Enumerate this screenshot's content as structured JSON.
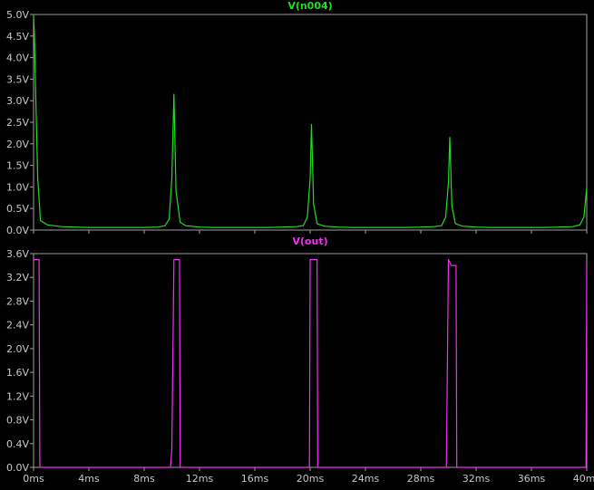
{
  "colors": {
    "background": "#000000",
    "frame": "#a0a0a0",
    "tick_text": "#c8c8c8"
  },
  "chart_data": [
    {
      "type": "line",
      "title": "V(n004)",
      "color": "#22dd22",
      "xlim": [
        0,
        40
      ],
      "ylim": [
        0,
        5.0
      ],
      "y_ticks": [
        "0.0V",
        "0.5V",
        "1.0V",
        "1.5V",
        "2.0V",
        "2.5V",
        "3.0V",
        "3.5V",
        "4.0V",
        "4.5V",
        "5.0V"
      ],
      "x": [
        0,
        0.05,
        0.15,
        0.3,
        0.5,
        1,
        2,
        3,
        4,
        5,
        6,
        7,
        8,
        9,
        9.5,
        9.8,
        10,
        10.15,
        10.3,
        10.6,
        11,
        12,
        13,
        14,
        15,
        16,
        17,
        18,
        19,
        19.5,
        19.8,
        20,
        20.1,
        20.25,
        20.5,
        21,
        22,
        23,
        24,
        25,
        26,
        27,
        28,
        29,
        29.5,
        29.8,
        30,
        30.1,
        30.25,
        30.5,
        31,
        32,
        33,
        34,
        35,
        36,
        37,
        38,
        39,
        39.5,
        39.8,
        40
      ],
      "y": [
        5.0,
        4.6,
        3.2,
        1.2,
        0.22,
        0.12,
        0.08,
        0.07,
        0.06,
        0.06,
        0.06,
        0.06,
        0.06,
        0.07,
        0.1,
        0.25,
        1.2,
        3.15,
        0.9,
        0.18,
        0.1,
        0.07,
        0.06,
        0.06,
        0.06,
        0.06,
        0.06,
        0.07,
        0.08,
        0.1,
        0.3,
        1.2,
        2.45,
        0.6,
        0.15,
        0.09,
        0.07,
        0.06,
        0.06,
        0.06,
        0.06,
        0.06,
        0.07,
        0.08,
        0.1,
        0.3,
        1.1,
        2.15,
        0.55,
        0.15,
        0.09,
        0.07,
        0.06,
        0.06,
        0.06,
        0.06,
        0.06,
        0.07,
        0.08,
        0.12,
        0.3,
        1.0
      ]
    },
    {
      "type": "line",
      "title": "V(out)",
      "color": "#ee33ee",
      "xlim": [
        0,
        40
      ],
      "ylim": [
        0,
        3.6
      ],
      "y_ticks": [
        "0.0V",
        "0.4V",
        "0.8V",
        "1.2V",
        "1.6V",
        "2.0V",
        "2.4V",
        "2.8V",
        "3.2V",
        "3.6V"
      ],
      "x_ticks": [
        "0ms",
        "4ms",
        "8ms",
        "12ms",
        "16ms",
        "20ms",
        "24ms",
        "28ms",
        "32ms",
        "36ms",
        "40ms"
      ],
      "x": [
        0,
        0.4,
        0.45,
        9.9,
        10.0,
        10.15,
        10.55,
        10.6,
        19.95,
        20.0,
        20.5,
        20.55,
        29.85,
        30.0,
        30.2,
        30.55,
        30.6,
        39.95,
        40
      ],
      "y": [
        3.5,
        3.5,
        0.0,
        0.0,
        0.3,
        3.5,
        3.5,
        0.0,
        0.0,
        3.5,
        3.5,
        0.0,
        0.0,
        3.5,
        3.4,
        3.4,
        0.0,
        0.0,
        3.4
      ]
    }
  ]
}
